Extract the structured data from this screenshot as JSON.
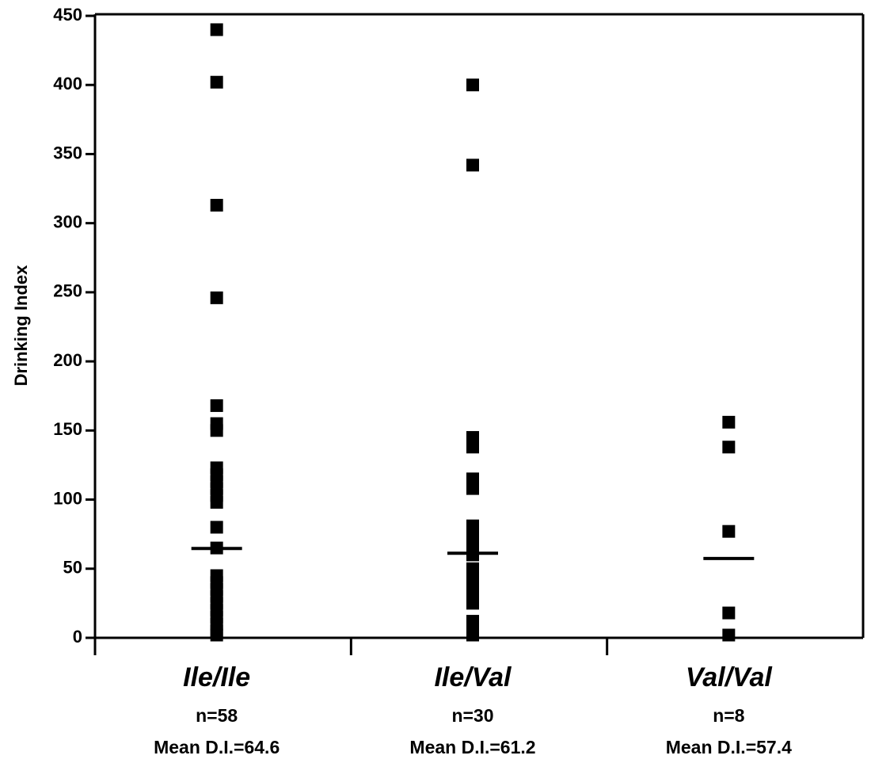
{
  "chart_data": {
    "type": "strip",
    "y_label": "Drinking Index",
    "categories": [
      "Ile/Ile",
      "Ile/Val",
      "Val/Val"
    ],
    "color": "#000000",
    "points": [
      [
        440,
        402,
        313,
        246,
        168,
        155,
        150,
        123,
        118,
        113,
        108,
        103,
        98,
        80,
        65,
        45,
        40,
        35,
        30,
        25,
        20,
        15,
        10,
        5,
        2
      ],
      [
        400,
        342,
        145,
        138,
        115,
        108,
        81,
        74,
        67,
        60,
        50,
        44,
        38,
        30,
        25,
        12,
        8,
        2
      ],
      [
        156,
        138,
        77,
        18,
        2
      ]
    ],
    "means": [
      64.6,
      61.2,
      57.4
    ],
    "n_labels": [
      "n=58",
      "n=30",
      "n=8"
    ],
    "mean_labels": [
      "Mean D.I.=64.6",
      "Mean D.I.=61.2",
      "Mean D.I.=57.4"
    ],
    "ylim": [
      0,
      450
    ],
    "yticks": [
      0,
      50,
      100,
      150,
      200,
      250,
      300,
      350,
      400,
      450
    ]
  }
}
